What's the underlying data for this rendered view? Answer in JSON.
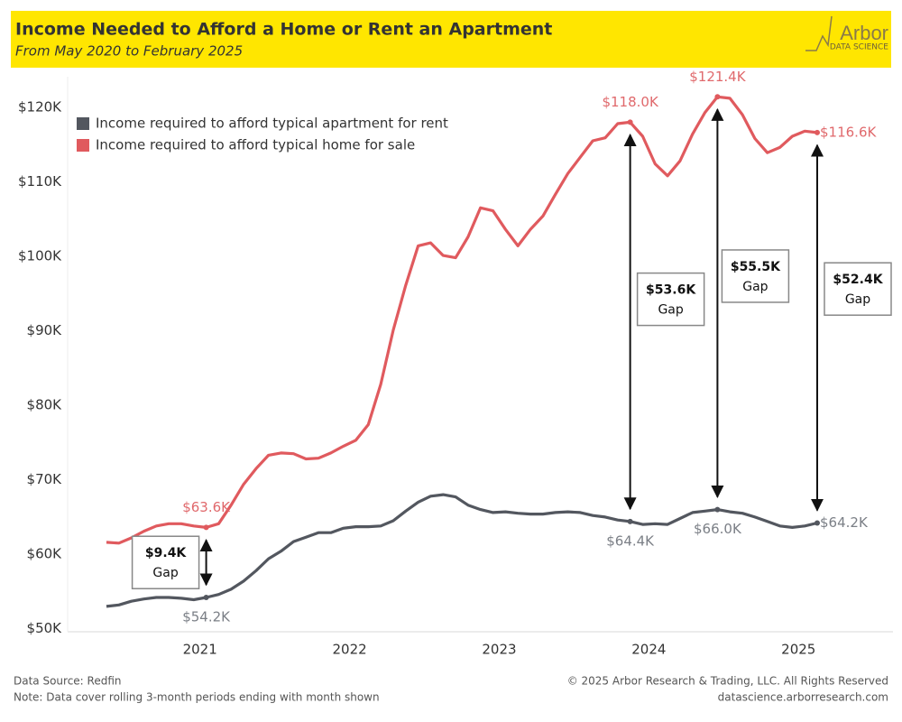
{
  "chart_data": {
    "type": "line",
    "title": "Income Needed to Afford a Home or Rent an Apartment",
    "subtitle": "From May 2020 to February 2025",
    "brand": "Arbor",
    "brand_sub": "DATA SCIENCE",
    "source": "Data Source: Redfin",
    "note": "Note: Data cover rolling 3-month periods ending with month shown",
    "copyright": "© 2025 Arbor Research & Trading, LLC. All Rights Reserved",
    "website": "datascience.arborresearch.com",
    "categories": [
      null,
      null,
      null,
      null,
      null,
      null,
      null,
      null,
      "2021",
      null,
      null,
      null,
      null,
      null,
      null,
      null,
      null,
      null,
      null,
      null,
      "2022",
      null,
      null,
      null,
      null,
      null,
      null,
      null,
      null,
      null,
      null,
      null,
      "2023",
      null,
      null,
      null,
      null,
      null,
      null,
      null,
      null,
      null,
      null,
      null,
      "2024",
      null,
      null,
      null,
      null,
      null,
      null,
      null,
      null,
      null,
      null,
      null,
      "2025",
      null
    ],
    "series": [
      {
        "name": "Income required to afford typical apartment for rent",
        "color": "#53575f",
        "label_color": "#7b7f86",
        "values": [
          53000,
          53200,
          53700,
          54000,
          54200,
          54200,
          54100,
          53900,
          54200,
          54600,
          55300,
          56400,
          57800,
          59400,
          60400,
          61700,
          62300,
          62900,
          62900,
          63500,
          63700,
          63700,
          63800,
          64500,
          65800,
          67000,
          67800,
          68000,
          67700,
          66600,
          66000,
          65600,
          65700,
          65500,
          65400,
          65400,
          65600,
          65700,
          65600,
          65200,
          65000,
          64600,
          64400,
          64000,
          64100,
          64000,
          64800,
          65600,
          65800,
          66000,
          65700,
          65500,
          65000,
          64400,
          63800,
          63600,
          63800,
          64200
        ],
        "value_labels": [
          null,
          null,
          null,
          null,
          null,
          null,
          null,
          null,
          "$54.2K",
          null,
          null,
          null,
          null,
          null,
          null,
          null,
          null,
          null,
          null,
          null,
          null,
          null,
          null,
          null,
          null,
          null,
          null,
          null,
          null,
          null,
          null,
          null,
          null,
          null,
          null,
          null,
          null,
          null,
          null,
          null,
          null,
          null,
          "$64.4K",
          null,
          null,
          null,
          null,
          null,
          null,
          "$66.0K",
          null,
          null,
          null,
          null,
          null,
          null,
          null,
          "$64.2K"
        ]
      },
      {
        "name": "Income required to afford typical home for sale",
        "color": "#e05a5e",
        "label_color": "#e0696c",
        "values": [
          61600,
          61500,
          62200,
          63100,
          63800,
          64100,
          64100,
          63800,
          63600,
          64100,
          66600,
          69400,
          71500,
          73300,
          73600,
          73500,
          72800,
          72900,
          73600,
          74500,
          75300,
          77400,
          82800,
          90100,
          96100,
          101400,
          101800,
          100100,
          99800,
          102600,
          106500,
          106100,
          103600,
          101400,
          103600,
          105400,
          108300,
          111100,
          113300,
          115500,
          115900,
          117800,
          118000,
          116100,
          112400,
          110800,
          112800,
          116400,
          119300,
          121400,
          121200,
          119000,
          115800,
          113900,
          114600,
          116100,
          116800,
          116600
        ],
        "value_labels": [
          null,
          null,
          null,
          null,
          null,
          null,
          null,
          null,
          "$63.6K",
          null,
          null,
          null,
          null,
          null,
          null,
          null,
          null,
          null,
          null,
          null,
          null,
          null,
          null,
          null,
          null,
          null,
          null,
          null,
          null,
          null,
          null,
          null,
          null,
          null,
          null,
          null,
          null,
          null,
          null,
          null,
          null,
          null,
          "$118.0K",
          null,
          null,
          null,
          null,
          null,
          null,
          "$121.4K",
          null,
          null,
          null,
          null,
          null,
          null,
          null,
          "$116.6K"
        ]
      }
    ],
    "annotations": [
      {
        "amount": "$9.4K",
        "word": "Gap"
      },
      {
        "amount": "$53.6K",
        "word": "Gap"
      },
      {
        "amount": "$55.5K",
        "word": "Gap"
      },
      {
        "amount": "$52.4K",
        "word": "Gap"
      }
    ],
    "ylim": [
      49600,
      124100
    ],
    "yticks": [
      {
        "value": 50000,
        "label": "$50K"
      },
      {
        "value": 60000,
        "label": "$60K"
      },
      {
        "value": 70000,
        "label": "$70K"
      },
      {
        "value": 80000,
        "label": "$80K"
      },
      {
        "value": 90000,
        "label": "$90K"
      },
      {
        "value": 100000,
        "label": "$100K"
      },
      {
        "value": 110000,
        "label": "$110K"
      },
      {
        "value": 120000,
        "label": "$120K"
      }
    ],
    "grid": false,
    "legend": "top-left"
  }
}
